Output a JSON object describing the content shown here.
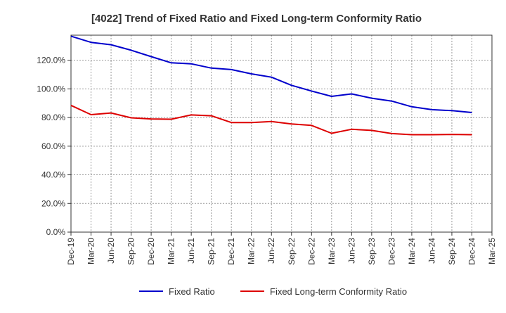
{
  "chart_data": {
    "type": "line",
    "title": "[4022]  Trend of Fixed Ratio and Fixed Long-term Conformity Ratio",
    "xlabel": "",
    "ylabel": "",
    "categories": [
      "Dec-19",
      "Mar-20",
      "Jun-20",
      "Sep-20",
      "Dec-20",
      "Mar-21",
      "Jun-21",
      "Sep-21",
      "Dec-21",
      "Mar-22",
      "Jun-22",
      "Sep-22",
      "Dec-22",
      "Mar-23",
      "Jun-23",
      "Sep-23",
      "Dec-23",
      "Mar-24",
      "Jun-24",
      "Sep-24",
      "Dec-24",
      "Mar-25"
    ],
    "ylim": [
      0,
      137.5
    ],
    "y_ticks": [
      0,
      20,
      40,
      60,
      80,
      100,
      120
    ],
    "y_tick_labels": [
      "0.0%",
      "20.0%",
      "40.0%",
      "60.0%",
      "80.0%",
      "100.0%",
      "120.0%"
    ],
    "grid": true,
    "legend_position": "bottom",
    "series": [
      {
        "name": "Fixed Ratio",
        "color": "#0000cc",
        "values": [
          136.8,
          132.5,
          130.8,
          127.0,
          122.5,
          118.2,
          117.5,
          114.5,
          113.5,
          110.5,
          108.2,
          102.5,
          98.5,
          94.8,
          96.5,
          93.5,
          91.5,
          87.5,
          85.5,
          84.8,
          83.5,
          null
        ]
      },
      {
        "name": "Fixed Long-term Conformity Ratio",
        "color": "#dd0000",
        "values": [
          88.5,
          82.0,
          83.2,
          79.8,
          79.0,
          78.8,
          81.8,
          81.2,
          76.5,
          76.5,
          77.2,
          75.5,
          74.5,
          69.0,
          71.8,
          71.0,
          68.8,
          68.0,
          68.0,
          68.2,
          68.0,
          null
        ]
      }
    ]
  }
}
